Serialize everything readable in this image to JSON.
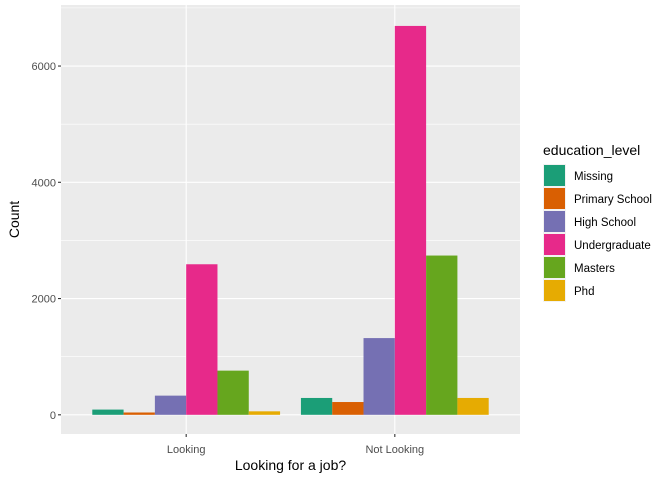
{
  "chart_data": {
    "type": "bar",
    "xlabel": "Looking for a job?",
    "ylabel": "Count",
    "categories": [
      "Looking",
      "Not Looking"
    ],
    "y_ticks": [
      0,
      2000,
      4000,
      6000
    ],
    "ylim": [
      -330,
      7050
    ],
    "grid": true,
    "legend_title": "education_level",
    "legend_position": "right",
    "series": [
      {
        "name": "Missing",
        "color": "#1B9E77",
        "values": [
          90,
          290
        ]
      },
      {
        "name": "Primary School",
        "color": "#D95F02",
        "values": [
          40,
          220
        ]
      },
      {
        "name": "High School",
        "color": "#7570B3",
        "values": [
          330,
          1320
        ]
      },
      {
        "name": "Undergraduate",
        "color": "#E7298A",
        "values": [
          2590,
          6690
        ]
      },
      {
        "name": "Masters",
        "color": "#66A61E",
        "values": [
          760,
          2740
        ]
      },
      {
        "name": "Phd",
        "color": "#E6AB02",
        "values": [
          60,
          290
        ]
      }
    ]
  }
}
